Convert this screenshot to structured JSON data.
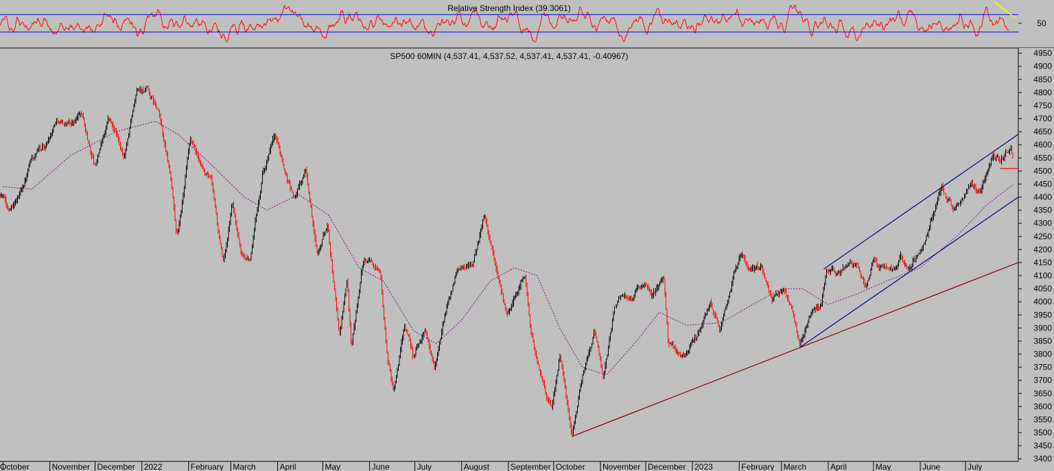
{
  "chart_data": [
    {
      "type": "line",
      "panel": "rsi",
      "title": "Relative Strength Index (39.3061)",
      "yticks": [
        50
      ],
      "ylim": [
        0,
        100
      ],
      "bands": [
        70,
        30
      ],
      "colors": {
        "line": "#ff0000",
        "bands": "#0000ff",
        "annotation": "#ffff00"
      }
    },
    {
      "type": "candlestick",
      "title": "SP500 60MIN (4,537.41, 4,537.52, 4,537.41, 4,537.41, -0.40967)",
      "ylim": [
        3390,
        4970
      ],
      "yticks": [
        3400,
        3450,
        3500,
        3550,
        3600,
        3650,
        3700,
        3750,
        3800,
        3850,
        3900,
        3950,
        4000,
        4050,
        4100,
        4150,
        4200,
        4250,
        4300,
        4350,
        4400,
        4450,
        4500,
        4550,
        4600,
        4650,
        4700,
        4750,
        4800,
        4850,
        4900,
        4950
      ],
      "x_labels": [
        "October",
        "November",
        "December",
        "2022",
        "February",
        "March",
        "April",
        "May",
        "June",
        "July",
        "August",
        "September",
        "October",
        "November",
        "December",
        "2023",
        "February",
        "March",
        "April",
        "May",
        "June",
        "July"
      ],
      "anchors": [
        [
          "2021-10-01",
          4410
        ],
        [
          "2021-10-04",
          4350
        ],
        [
          "2021-10-12",
          4420
        ],
        [
          "2021-10-20",
          4540
        ],
        [
          "2021-10-30",
          4600
        ],
        [
          "2021-11-05",
          4700
        ],
        [
          "2021-11-15",
          4680
        ],
        [
          "2021-11-22",
          4720
        ],
        [
          "2021-11-26",
          4620
        ],
        [
          "2021-12-01",
          4520
        ],
        [
          "2021-12-10",
          4710
        ],
        [
          "2021-12-20",
          4560
        ],
        [
          "2021-12-29",
          4800
        ],
        [
          "2022-01-04",
          4810
        ],
        [
          "2022-01-12",
          4720
        ],
        [
          "2022-01-20",
          4480
        ],
        [
          "2022-01-24",
          4250
        ],
        [
          "2022-01-27",
          4330
        ],
        [
          "2022-02-02",
          4600
        ],
        [
          "2022-02-10",
          4500
        ],
        [
          "2022-02-16",
          4450
        ],
        [
          "2022-02-24",
          4130
        ],
        [
          "2022-03-02",
          4380
        ],
        [
          "2022-03-08",
          4180
        ],
        [
          "2022-03-14",
          4170
        ],
        [
          "2022-03-22",
          4500
        ],
        [
          "2022-03-30",
          4630
        ],
        [
          "2022-04-06",
          4500
        ],
        [
          "2022-04-12",
          4400
        ],
        [
          "2022-04-20",
          4500
        ],
        [
          "2022-04-27",
          4180
        ],
        [
          "2022-05-04",
          4300
        ],
        [
          "2022-05-12",
          3870
        ],
        [
          "2022-05-17",
          4080
        ],
        [
          "2022-05-20",
          3830
        ],
        [
          "2022-05-27",
          4150
        ],
        [
          "2022-06-02",
          4180
        ],
        [
          "2022-06-08",
          4140
        ],
        [
          "2022-06-13",
          3780
        ],
        [
          "2022-06-17",
          3650
        ],
        [
          "2022-06-24",
          3910
        ],
        [
          "2022-06-30",
          3780
        ],
        [
          "2022-07-08",
          3900
        ],
        [
          "2022-07-14",
          3750
        ],
        [
          "2022-07-22",
          3980
        ],
        [
          "2022-07-29",
          4130
        ],
        [
          "2022-08-08",
          4150
        ],
        [
          "2022-08-16",
          4320
        ],
        [
          "2022-08-24",
          4120
        ],
        [
          "2022-08-31",
          3950
        ],
        [
          "2022-09-08",
          4060
        ],
        [
          "2022-09-12",
          4110
        ],
        [
          "2022-09-16",
          3870
        ],
        [
          "2022-09-23",
          3700
        ],
        [
          "2022-09-30",
          3580
        ],
        [
          "2022-10-05",
          3790
        ],
        [
          "2022-10-13",
          3500
        ],
        [
          "2022-10-21",
          3750
        ],
        [
          "2022-10-28",
          3900
        ],
        [
          "2022-11-03",
          3720
        ],
        [
          "2022-11-10",
          3960
        ],
        [
          "2022-11-15",
          4020
        ],
        [
          "2022-11-23",
          4030
        ],
        [
          "2022-11-30",
          4080
        ],
        [
          "2022-12-05",
          4000
        ],
        [
          "2022-12-13",
          4100
        ],
        [
          "2022-12-16",
          3850
        ],
        [
          "2022-12-22",
          3800
        ],
        [
          "2022-12-28",
          3790
        ],
        [
          "2023-01-06",
          3900
        ],
        [
          "2023-01-13",
          3990
        ],
        [
          "2023-01-19",
          3900
        ],
        [
          "2023-01-27",
          4070
        ],
        [
          "2023-02-02",
          4190
        ],
        [
          "2023-02-08",
          4120
        ],
        [
          "2023-02-16",
          4150
        ],
        [
          "2023-02-23",
          4000
        ],
        [
          "2023-03-03",
          4050
        ],
        [
          "2023-03-08",
          3960
        ],
        [
          "2023-03-13",
          3830
        ],
        [
          "2023-03-20",
          3950
        ],
        [
          "2023-03-27",
          3980
        ],
        [
          "2023-03-31",
          4110
        ],
        [
          "2023-04-06",
          4100
        ],
        [
          "2023-04-14",
          4140
        ],
        [
          "2023-04-21",
          4130
        ],
        [
          "2023-04-26",
          4060
        ],
        [
          "2023-05-01",
          4170
        ],
        [
          "2023-05-08",
          4130
        ],
        [
          "2023-05-15",
          4120
        ],
        [
          "2023-05-19",
          4190
        ],
        [
          "2023-05-24",
          4120
        ],
        [
          "2023-05-31",
          4200
        ],
        [
          "2023-06-06",
          4280
        ],
        [
          "2023-06-15",
          4440
        ],
        [
          "2023-06-23",
          4350
        ],
        [
          "2023-06-28",
          4370
        ],
        [
          "2023-07-05",
          4440
        ],
        [
          "2023-07-11",
          4420
        ],
        [
          "2023-07-19",
          4570
        ],
        [
          "2023-07-24",
          4560
        ],
        [
          "2023-07-31",
          4590
        ],
        [
          "2023-08-02",
          4537
        ]
      ],
      "moving_average": [
        [
          "2021-10-01",
          4440
        ],
        [
          "2021-10-20",
          4430
        ],
        [
          "2021-11-15",
          4560
        ],
        [
          "2021-12-15",
          4650
        ],
        [
          "2022-01-10",
          4690
        ],
        [
          "2022-01-25",
          4640
        ],
        [
          "2022-02-15",
          4530
        ],
        [
          "2022-03-10",
          4400
        ],
        [
          "2022-03-25",
          4350
        ],
        [
          "2022-04-15",
          4410
        ],
        [
          "2022-05-05",
          4330
        ],
        [
          "2022-05-25",
          4130
        ],
        [
          "2022-06-10",
          4080
        ],
        [
          "2022-06-30",
          3890
        ],
        [
          "2022-07-15",
          3840
        ],
        [
          "2022-08-01",
          3930
        ],
        [
          "2022-08-20",
          4080
        ],
        [
          "2022-09-05",
          4130
        ],
        [
          "2022-09-20",
          4100
        ],
        [
          "2022-10-05",
          3900
        ],
        [
          "2022-10-20",
          3750
        ],
        [
          "2022-11-05",
          3720
        ],
        [
          "2022-11-25",
          3850
        ],
        [
          "2022-12-10",
          3960
        ],
        [
          "2022-12-28",
          3910
        ],
        [
          "2023-01-20",
          3920
        ],
        [
          "2023-02-10",
          3990
        ],
        [
          "2023-03-01",
          4050
        ],
        [
          "2023-03-15",
          4050
        ],
        [
          "2023-04-01",
          3990
        ],
        [
          "2023-04-20",
          4030
        ],
        [
          "2023-05-10",
          4080
        ],
        [
          "2023-06-01",
          4130
        ],
        [
          "2023-06-25",
          4250
        ],
        [
          "2023-07-15",
          4370
        ],
        [
          "2023-08-02",
          4450
        ]
      ],
      "trendlines": [
        {
          "color": "#000080",
          "from": [
            "2023-03-13",
            3825
          ],
          "to": [
            "2023-08-05",
            4400
          ]
        },
        {
          "color": "#000080",
          "from": [
            "2023-03-29",
            4125
          ],
          "to": [
            "2023-08-05",
            4640
          ]
        },
        {
          "color": "#800000",
          "from": [
            "2022-10-13",
            3485
          ],
          "to": [
            "2023-08-05",
            4150
          ]
        },
        {
          "color": "#ff0000",
          "from": [
            "2023-07-24",
            4510
          ],
          "to": [
            "2023-08-05",
            4510
          ]
        }
      ],
      "colors": {
        "up": "#000000",
        "down": "#ff0000",
        "ma": "#800080",
        "background": "#c0c0c0"
      }
    }
  ]
}
